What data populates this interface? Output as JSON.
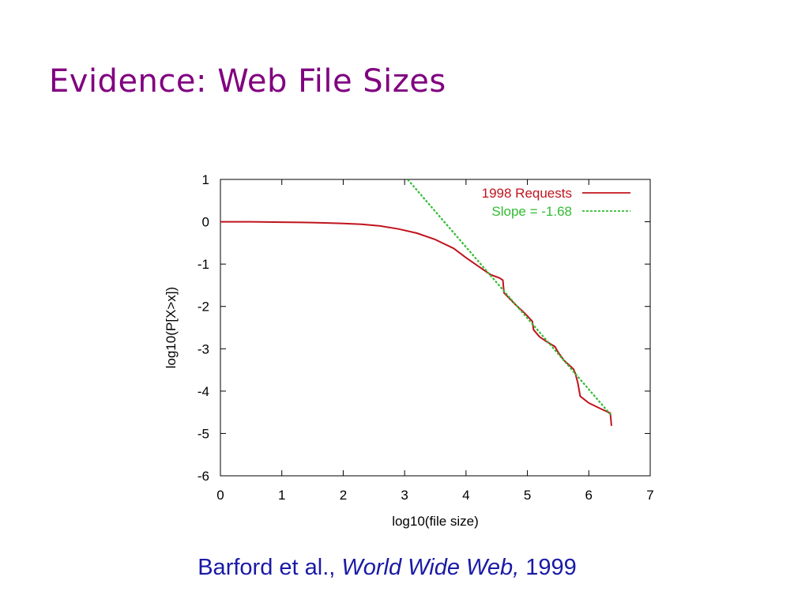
{
  "slide": {
    "title": "Evidence: Web File Sizes",
    "citation": {
      "authors": "Barford et al., ",
      "journal": "World Wide Web,",
      "year": " 1999",
      "color": "#1a1aa6"
    },
    "title_color": "#800080"
  },
  "chart_data": {
    "type": "line",
    "xlabel": "log10(file size)",
    "ylabel": "log10(P[X>x])",
    "xlim": [
      0,
      7
    ],
    "ylim": [
      -6,
      1
    ],
    "xticks": [
      0,
      1,
      2,
      3,
      4,
      5,
      6,
      7
    ],
    "yticks": [
      1,
      0,
      -1,
      -2,
      -3,
      -4,
      -5,
      -6
    ],
    "grid": false,
    "legend_position": "top-right",
    "series": [
      {
        "name": "1998 Requests",
        "color": "#c0141e",
        "style": "solid",
        "x": [
          0,
          0.5,
          1.0,
          1.5,
          1.8,
          2.0,
          2.3,
          2.6,
          2.9,
          3.2,
          3.5,
          3.8,
          4.0,
          4.2,
          4.4,
          4.55,
          4.6,
          4.62,
          4.8,
          4.95,
          5.08,
          5.1,
          5.2,
          5.3,
          5.45,
          5.5,
          5.6,
          5.75,
          5.78,
          5.82,
          5.86,
          6.0,
          6.2,
          6.35,
          6.37
        ],
        "y": [
          0,
          0,
          -0.01,
          -0.02,
          -0.03,
          -0.04,
          -0.06,
          -0.1,
          -0.17,
          -0.27,
          -0.42,
          -0.63,
          -0.85,
          -1.05,
          -1.25,
          -1.33,
          -1.38,
          -1.68,
          -1.95,
          -2.15,
          -2.35,
          -2.55,
          -2.72,
          -2.82,
          -2.95,
          -3.08,
          -3.28,
          -3.48,
          -3.58,
          -3.8,
          -4.12,
          -4.28,
          -4.42,
          -4.52,
          -4.82
        ]
      },
      {
        "name": "Slope = -1.68",
        "color": "#33bb33",
        "style": "dashed",
        "x": [
          3.05,
          6.37
        ],
        "y": [
          1.0,
          -4.58
        ]
      }
    ]
  }
}
